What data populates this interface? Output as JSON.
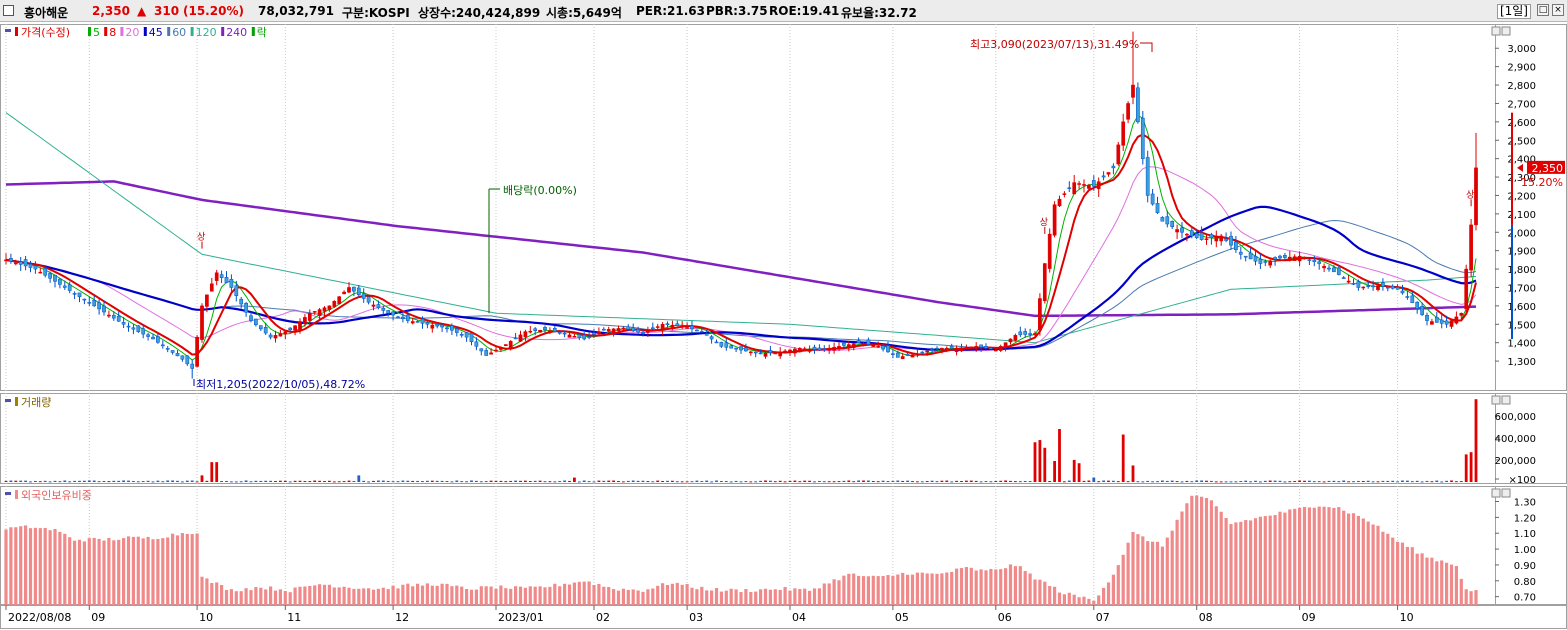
{
  "header": {
    "stock_name": "흥아해운",
    "price": "2,350",
    "change_arrow": "▲",
    "change": "310",
    "change_pct": "(15.20%)",
    "volume": "78,032,791",
    "market": "구분:KOSPI",
    "listed_shares": "상장수:240,424,899",
    "market_cap": "시총:5,649억",
    "per": "PER:21.63",
    "pbr": "PBR:3.75",
    "roe": "ROE:19.41",
    "float_ratio": "유보율:32.72",
    "period": "[1일]"
  },
  "legend": {
    "price_label": "가격(수정)",
    "ma": [
      {
        "label": "5",
        "color": "#00b000"
      },
      {
        "label": "8",
        "color": "#e00000"
      },
      {
        "label": "20",
        "color": "#e070e0"
      },
      {
        "label": "45",
        "color": "#0000c8"
      },
      {
        "label": "60",
        "color": "#4a7ab0"
      },
      {
        "label": "120",
        "color": "#30b090"
      },
      {
        "label": "240",
        "color": "#8020c0"
      }
    ],
    "rak": "락",
    "volume_label": "거래량",
    "foreign_label": "외국인보유비중"
  },
  "annotations": {
    "high": "최고3,090(2023/07/13),31.49%",
    "low": "최저1,205(2022/10/05),48.72%",
    "dividend": "배당락(0.00%)",
    "up_mark": "상"
  },
  "current": {
    "price_tag": "2,350",
    "pct_tag": "15.20%"
  },
  "chart_data": [
    {
      "type": "candlestick",
      "title": "가격(수정)",
      "x_ticks": [
        "2022/08/08",
        "09",
        "10",
        "11",
        "12",
        "2023/01",
        "02",
        "03",
        "04",
        "05",
        "06",
        "07",
        "08",
        "09",
        "10"
      ],
      "y_ticks": [
        "1,300",
        "1,400",
        "1,500",
        "1,600",
        "1,700",
        "1,800",
        "1,900",
        "2,000",
        "2,100",
        "2,200",
        "2,300",
        "2,400",
        "2,500",
        "2,600",
        "2,700",
        "2,800",
        "2,900",
        "3,000"
      ],
      "ylim": [
        1170,
        3110
      ],
      "close_anchors": [
        [
          0,
          1850
        ],
        [
          6,
          1800
        ],
        [
          12,
          1700
        ],
        [
          18,
          1600
        ],
        [
          24,
          1500
        ],
        [
          30,
          1420
        ],
        [
          36,
          1310
        ],
        [
          38,
          1260
        ],
        [
          40,
          1600
        ],
        [
          43,
          1780
        ],
        [
          46,
          1700
        ],
        [
          50,
          1520
        ],
        [
          54,
          1430
        ],
        [
          58,
          1470
        ],
        [
          62,
          1560
        ],
        [
          66,
          1600
        ],
        [
          70,
          1700
        ],
        [
          74,
          1620
        ],
        [
          78,
          1560
        ],
        [
          82,
          1520
        ],
        [
          86,
          1500
        ],
        [
          90,
          1480
        ],
        [
          94,
          1430
        ],
        [
          98,
          1330
        ],
        [
          102,
          1390
        ],
        [
          106,
          1460
        ],
        [
          110,
          1470
        ],
        [
          114,
          1450
        ],
        [
          118,
          1420
        ],
        [
          122,
          1470
        ],
        [
          126,
          1480
        ],
        [
          130,
          1450
        ],
        [
          134,
          1500
        ],
        [
          138,
          1490
        ],
        [
          142,
          1460
        ],
        [
          146,
          1380
        ],
        [
          150,
          1360
        ],
        [
          154,
          1340
        ],
        [
          158,
          1350
        ],
        [
          162,
          1370
        ],
        [
          166,
          1360
        ],
        [
          170,
          1380
        ],
        [
          174,
          1400
        ],
        [
          178,
          1380
        ],
        [
          182,
          1320
        ],
        [
          186,
          1340
        ],
        [
          190,
          1370
        ],
        [
          194,
          1370
        ],
        [
          198,
          1380
        ],
        [
          202,
          1360
        ],
        [
          206,
          1440
        ],
        [
          210,
          1450
        ],
        [
          212,
          1830
        ],
        [
          214,
          2150
        ],
        [
          218,
          2270
        ],
        [
          222,
          2250
        ],
        [
          226,
          2350
        ],
        [
          228,
          2600
        ],
        [
          230,
          2800
        ],
        [
          233,
          2200
        ],
        [
          236,
          2060
        ],
        [
          240,
          2000
        ],
        [
          244,
          1960
        ],
        [
          248,
          1980
        ],
        [
          252,
          1880
        ],
        [
          256,
          1830
        ],
        [
          260,
          1860
        ],
        [
          264,
          1870
        ],
        [
          268,
          1830
        ],
        [
          272,
          1770
        ],
        [
          276,
          1700
        ],
        [
          280,
          1710
        ],
        [
          284,
          1690
        ],
        [
          286,
          1650
        ],
        [
          290,
          1520
        ],
        [
          294,
          1500
        ],
        [
          297,
          1560
        ],
        [
          299,
          2040
        ],
        [
          300,
          2350
        ]
      ],
      "current_price": 2350,
      "change": 310,
      "change_pct": 15.2,
      "high": {
        "value": 3090,
        "date": "2023/07/13",
        "pct": 31.49
      },
      "low": {
        "value": 1205,
        "date": "2022/10/05",
        "pct": 48.72
      }
    },
    {
      "type": "bar",
      "title": "거래량",
      "y_ticks": [
        "600,000",
        "400,000",
        "200,000",
        "×100"
      ],
      "ylim": [
        0,
        770000
      ],
      "spikes": [
        [
          40,
          60000
        ],
        [
          42,
          180000
        ],
        [
          43,
          180000
        ],
        [
          72,
          60000
        ],
        [
          116,
          40000
        ],
        [
          210,
          360000
        ],
        [
          211,
          380000
        ],
        [
          212,
          310000
        ],
        [
          214,
          190000
        ],
        [
          215,
          480000
        ],
        [
          218,
          200000
        ],
        [
          219,
          170000
        ],
        [
          222,
          40000
        ],
        [
          228,
          430000
        ],
        [
          230,
          150000
        ],
        [
          298,
          250000
        ],
        [
          299,
          270000
        ],
        [
          300,
          750000
        ]
      ]
    },
    {
      "type": "bar",
      "title": "외국인보유비중",
      "y_ticks": [
        "1.30",
        "1.20",
        "1.10",
        "1.00",
        "0.90",
        "0.80",
        "0.70"
      ],
      "ylim": [
        0.66,
        1.36
      ],
      "anchors": [
        [
          0,
          1.13
        ],
        [
          5,
          1.14
        ],
        [
          10,
          1.12
        ],
        [
          14,
          1.06
        ],
        [
          20,
          1.06
        ],
        [
          25,
          1.07
        ],
        [
          30,
          1.07
        ],
        [
          36,
          1.1
        ],
        [
          39,
          1.11
        ],
        [
          40,
          0.82
        ],
        [
          46,
          0.74
        ],
        [
          52,
          0.76
        ],
        [
          58,
          0.74
        ],
        [
          64,
          0.78
        ],
        [
          70,
          0.76
        ],
        [
          76,
          0.75
        ],
        [
          82,
          0.77
        ],
        [
          88,
          0.78
        ],
        [
          94,
          0.75
        ],
        [
          100,
          0.76
        ],
        [
          106,
          0.75
        ],
        [
          112,
          0.77
        ],
        [
          118,
          0.8
        ],
        [
          124,
          0.75
        ],
        [
          130,
          0.74
        ],
        [
          136,
          0.79
        ],
        [
          140,
          0.76
        ],
        [
          146,
          0.74
        ],
        [
          152,
          0.74
        ],
        [
          158,
          0.75
        ],
        [
          164,
          0.74
        ],
        [
          172,
          0.84
        ],
        [
          178,
          0.82
        ],
        [
          184,
          0.85
        ],
        [
          190,
          0.84
        ],
        [
          196,
          0.88
        ],
        [
          200,
          0.86
        ],
        [
          206,
          0.9
        ],
        [
          210,
          0.82
        ],
        [
          216,
          0.72
        ],
        [
          222,
          0.68
        ],
        [
          226,
          0.84
        ],
        [
          230,
          1.1
        ],
        [
          236,
          1.02
        ],
        [
          242,
          1.34
        ],
        [
          246,
          1.3
        ],
        [
          250,
          1.16
        ],
        [
          256,
          1.2
        ],
        [
          262,
          1.24
        ],
        [
          268,
          1.28
        ],
        [
          272,
          1.26
        ],
        [
          278,
          1.18
        ],
        [
          284,
          1.05
        ],
        [
          290,
          0.95
        ],
        [
          296,
          0.9
        ],
        [
          298,
          0.74
        ],
        [
          300,
          0.74
        ]
      ]
    }
  ]
}
